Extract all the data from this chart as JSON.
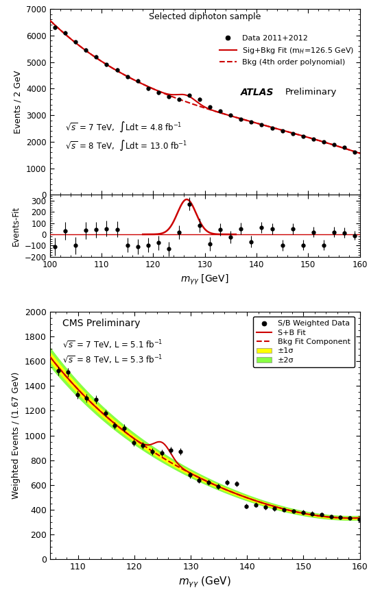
{
  "atlas_xlim": [
    100,
    160
  ],
  "atlas_main_ylim": [
    0,
    7000
  ],
  "atlas_res_ylim": [
    -200,
    350
  ],
  "atlas_ylabel_main": "Events / 2 GeV",
  "atlas_ylabel_res": "Events-Fit",
  "atlas_title": "Selected diphoton sample",
  "atlas_legend1": "Data 2011+2012",
  "atlas_legend2": "Sig+Bkg Fit (m$_{H}$=126.5 GeV)",
  "atlas_legend3": "Bkg (4th order polynomial)",
  "cms_xlim": [
    105,
    160
  ],
  "cms_ylim": [
    0,
    2000
  ],
  "cms_ylabel": "Weighted Events / (1.67 GeV)",
  "cms_title": "CMS Preliminary",
  "cms_legend1": "S/B Weighted Data",
  "cms_legend2": "S+B Fit",
  "cms_legend3": "Bkg Fit Component",
  "cms_legend4": "±1σ",
  "cms_legend5": "±2σ",
  "color_red": "#cc0000",
  "atlas_data_x": [
    101,
    103,
    105,
    107,
    109,
    111,
    113,
    115,
    117,
    119,
    121,
    123,
    125,
    127,
    129,
    131,
    133,
    135,
    137,
    139,
    141,
    143,
    145,
    147,
    149,
    151,
    153,
    155,
    157,
    159
  ],
  "atlas_data_y": [
    6300,
    6100,
    5750,
    5450,
    5200,
    4900,
    4700,
    4450,
    4300,
    4000,
    3850,
    3700,
    3600,
    3750,
    3600,
    3300,
    3150,
    3000,
    2850,
    2750,
    2650,
    2500,
    2400,
    2300,
    2200,
    2100,
    2000,
    1900,
    1800,
    1600
  ],
  "atlas_data_yerr": [
    80,
    80,
    75,
    75,
    70,
    70,
    70,
    65,
    65,
    65,
    62,
    62,
    60,
    60,
    60,
    58,
    55,
    55,
    53,
    52,
    50,
    50,
    48,
    48,
    47,
    46,
    45,
    44,
    43,
    40
  ],
  "atlas_res_y": [
    -110,
    30,
    -100,
    35,
    40,
    50,
    45,
    -95,
    -110,
    -95,
    -75,
    -130,
    20,
    270,
    80,
    -85,
    40,
    -25,
    50,
    -65,
    60,
    50,
    -95,
    50,
    -95,
    20,
    -95,
    20,
    15,
    -10
  ],
  "atlas_res_yerr": [
    80,
    80,
    75,
    75,
    70,
    70,
    70,
    65,
    65,
    65,
    62,
    62,
    60,
    60,
    60,
    58,
    55,
    55,
    53,
    52,
    50,
    50,
    48,
    48,
    47,
    46,
    45,
    44,
    43,
    40
  ],
  "cms_data_x": [
    106.5,
    108.2,
    109.9,
    111.5,
    113.2,
    114.9,
    116.5,
    118.2,
    119.9,
    121.5,
    123.2,
    124.9,
    126.5,
    128.2,
    129.9,
    131.5,
    133.2,
    134.9,
    136.5,
    138.2,
    139.9,
    141.5,
    143.2,
    144.9,
    146.5,
    148.2,
    149.9,
    151.5,
    153.2,
    154.9,
    156.5,
    158.2,
    159.9
  ],
  "cms_data_y": [
    1520,
    1510,
    1330,
    1300,
    1290,
    1180,
    1080,
    1060,
    940,
    920,
    870,
    860,
    880,
    870,
    680,
    640,
    620,
    590,
    620,
    610,
    430,
    440,
    420,
    410,
    400,
    390,
    380,
    370,
    360,
    345,
    340,
    335,
    325
  ],
  "cms_data_yerr": [
    35,
    35,
    33,
    32,
    32,
    30,
    29,
    29,
    28,
    27,
    27,
    27,
    27,
    27,
    23,
    23,
    22,
    22,
    23,
    22,
    19,
    19,
    19,
    18,
    18,
    18,
    18,
    17,
    17,
    17,
    17,
    17,
    16
  ]
}
